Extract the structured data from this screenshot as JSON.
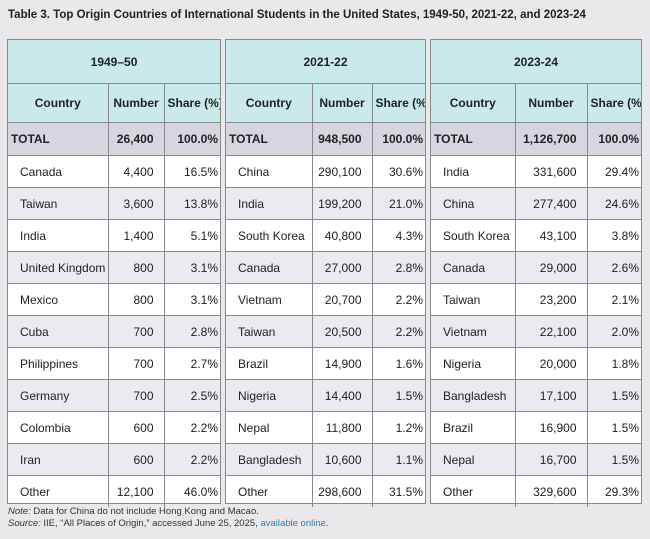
{
  "title": "Table 3. Top Origin Countries of International Students in the United States, 1949-50, 2021-22, and 2023-24",
  "headers": {
    "country": "Country",
    "number": "Number",
    "share": "Share (%)"
  },
  "panels": [
    {
      "period": "1949–50",
      "total": {
        "country": "TOTAL",
        "number": "26,400",
        "share": "100.0%"
      },
      "rows": [
        {
          "country": "Canada",
          "number": "4,400",
          "share": "16.5%"
        },
        {
          "country": "Taiwan",
          "number": "3,600",
          "share": "13.8%"
        },
        {
          "country": "India",
          "number": "1,400",
          "share": "5.1%"
        },
        {
          "country": "United Kingdom",
          "number": "800",
          "share": "3.1%"
        },
        {
          "country": "Mexico",
          "number": "800",
          "share": "3.1%"
        },
        {
          "country": "Cuba",
          "number": "700",
          "share": "2.8%"
        },
        {
          "country": "Philippines",
          "number": "700",
          "share": "2.7%"
        },
        {
          "country": "Germany",
          "number": "700",
          "share": "2.5%"
        },
        {
          "country": "Colombia",
          "number": "600",
          "share": "2.2%"
        },
        {
          "country": "Iran",
          "number": "600",
          "share": "2.2%"
        },
        {
          "country": "Other",
          "number": "12,100",
          "share": "46.0%"
        }
      ]
    },
    {
      "period": "2021-22",
      "total": {
        "country": "TOTAL",
        "number": "948,500",
        "share": "100.0%"
      },
      "rows": [
        {
          "country": "China",
          "number": "290,100",
          "share": "30.6%"
        },
        {
          "country": "India",
          "number": "199,200",
          "share": "21.0%"
        },
        {
          "country": "South Korea",
          "number": "40,800",
          "share": "4.3%"
        },
        {
          "country": "Canada",
          "number": "27,000",
          "share": "2.8%"
        },
        {
          "country": "Vietnam",
          "number": "20,700",
          "share": "2.2%"
        },
        {
          "country": "Taiwan",
          "number": "20,500",
          "share": "2.2%"
        },
        {
          "country": "Brazil",
          "number": "14,900",
          "share": "1.6%"
        },
        {
          "country": "Nigeria",
          "number": "14,400",
          "share": "1.5%"
        },
        {
          "country": "Nepal",
          "number": "11,800",
          "share": "1.2%"
        },
        {
          "country": "Bangladesh",
          "number": "10,600",
          "share": "1.1%"
        },
        {
          "country": "Other",
          "number": "298,600",
          "share": "31.5%"
        }
      ]
    },
    {
      "period": "2023-24",
      "total": {
        "country": "TOTAL",
        "number": "1,126,700",
        "share": "100.0%"
      },
      "rows": [
        {
          "country": "India",
          "number": "331,600",
          "share": "29.4%"
        },
        {
          "country": "China",
          "number": "277,400",
          "share": "24.6%"
        },
        {
          "country": "South Korea",
          "number": "43,100",
          "share": "3.8%"
        },
        {
          "country": "Canada",
          "number": "29,000",
          "share": "2.6%"
        },
        {
          "country": "Taiwan",
          "number": "23,200",
          "share": "2.1%"
        },
        {
          "country": "Vietnam",
          "number": "22,100",
          "share": "2.0%"
        },
        {
          "country": "Nigeria",
          "number": "20,000",
          "share": "1.8%"
        },
        {
          "country": "Bangladesh",
          "number": "17,100",
          "share": "1.5%"
        },
        {
          "country": "Brazil",
          "number": "16,900",
          "share": "1.5%"
        },
        {
          "country": "Nepal",
          "number": "16,700",
          "share": "1.5%"
        },
        {
          "country": "Other",
          "number": "329,600",
          "share": "29.3%"
        }
      ]
    }
  ],
  "notes": {
    "note_label": "Note:",
    "note_text": " Data for China do not include Hong Kong and Macao.",
    "source_label": "Source:",
    "source_text": " IIE, “All Places of Origin,” accessed June 25, 2025, ",
    "source_link": "available online",
    "source_end": "."
  }
}
